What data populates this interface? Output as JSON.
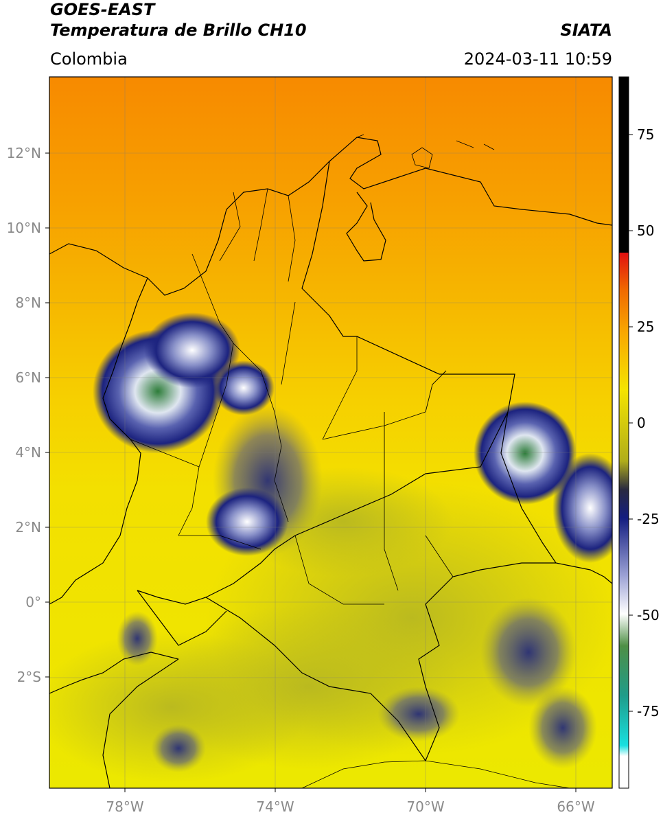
{
  "header": {
    "satellite": "GOES-EAST",
    "product": "Temperatura de Brillo CH10",
    "region": "Colombia",
    "agency": "SIATA",
    "datetime": "2024-03-11 10:59"
  },
  "map": {
    "lon_range": [
      -80,
      -65
    ],
    "lat_range": [
      -5,
      14
    ],
    "lon_ticks": [
      {
        "value": -78,
        "label": "78°W"
      },
      {
        "value": -74,
        "label": "74°W"
      },
      {
        "value": -70,
        "label": "70°W"
      },
      {
        "value": -66,
        "label": "66°W"
      }
    ],
    "lat_ticks": [
      {
        "value": 12,
        "label": "12°N"
      },
      {
        "value": 10,
        "label": "10°N"
      },
      {
        "value": 8,
        "label": "8°N"
      },
      {
        "value": 6,
        "label": "6°N"
      },
      {
        "value": 4,
        "label": "4°N"
      },
      {
        "value": 2,
        "label": "2°N"
      },
      {
        "value": 0,
        "label": "0°"
      },
      {
        "value": -2,
        "label": "2°S"
      }
    ],
    "grid": true
  },
  "colorbar": {
    "range": [
      -95,
      90
    ],
    "ticks": [
      {
        "value": 75,
        "label": "75"
      },
      {
        "value": 50,
        "label": "50"
      },
      {
        "value": 25,
        "label": "25"
      },
      {
        "value": 0,
        "label": "0"
      },
      {
        "value": -25,
        "label": "-25"
      },
      {
        "value": -50,
        "label": "-50"
      },
      {
        "value": -75,
        "label": "-75"
      }
    ]
  },
  "colors": {
    "ocean_warm": "#f7a000",
    "land_warm": "#f4e200",
    "land_mid": "#c8c41e",
    "cloud_cold": "#1c237f",
    "cloud_coldest": "#ffffff",
    "deep_convection": "#2e7d3a"
  }
}
